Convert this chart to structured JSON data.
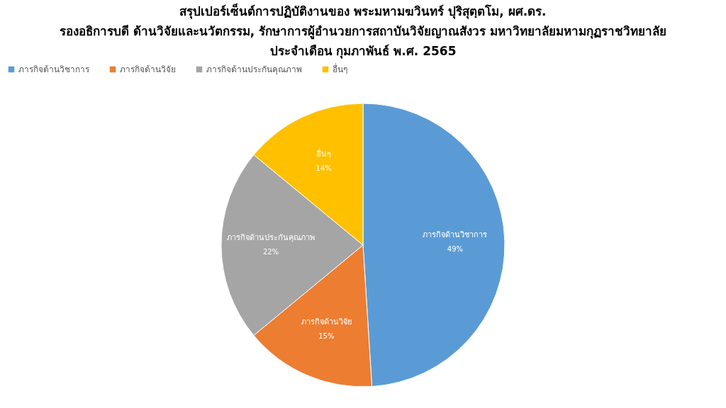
{
  "chart_data": {
    "type": "pie",
    "title": "สรุปเปอร์เซ็นต์การปฏิบัติงานของ พระมหามฆวินทร์ ปุริสุตฺตโม, ผศ.ดร.\nรองอธิการบดี ด้านวิจัยและนวัตกรรม, รักษาการผู้อำนวยการสถาบันวิจัยญาณสังวร มหาวิทยาลัยมหามกุฏราชวิทยาลัย\nประจำเดือน กุมภาพันธ์ พ.ศ. 2565",
    "categories": [
      "ภารกิจด้านวิชาการ",
      "ภารกิจด้านวิจัย",
      "ภารกิจด้านประกันคุณภาพ",
      "อื่นๆ"
    ],
    "values": [
      49,
      15,
      22,
      14
    ],
    "value_labels": [
      "49%",
      "15%",
      "22%",
      "14%"
    ],
    "colors": [
      "#5b9bd5",
      "#ed7d31",
      "#a5a5a5",
      "#ffc000"
    ],
    "legend": "top"
  }
}
